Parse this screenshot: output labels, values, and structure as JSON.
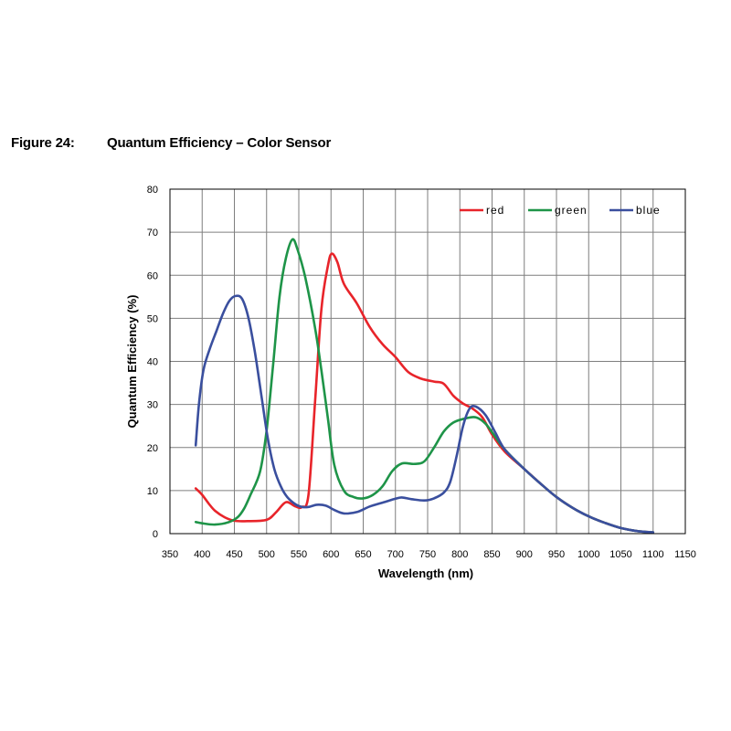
{
  "figure": {
    "label": "Figure 24:",
    "title": "Quantum Efficiency – Color Sensor"
  },
  "chart_data": {
    "type": "line",
    "xlabel": "Wavelength (nm)",
    "ylabel": "Quantum Efficiency (%)",
    "xlim": [
      350,
      1150
    ],
    "ylim": [
      0,
      80
    ],
    "xticks": [
      350,
      400,
      450,
      500,
      550,
      600,
      650,
      700,
      750,
      800,
      850,
      900,
      950,
      1000,
      1050,
      1100,
      1150
    ],
    "yticks": [
      0,
      10,
      20,
      30,
      40,
      50,
      60,
      70,
      80
    ],
    "grid": true,
    "legend_position": "top-right",
    "series": [
      {
        "name": "red",
        "color": "#e8242a",
        "points": [
          [
            390,
            10.5
          ],
          [
            400,
            9
          ],
          [
            410,
            7
          ],
          [
            420,
            5.3
          ],
          [
            435,
            3.8
          ],
          [
            450,
            3
          ],
          [
            470,
            2.9
          ],
          [
            500,
            3.2
          ],
          [
            515,
            5
          ],
          [
            530,
            7.3
          ],
          [
            545,
            6.3
          ],
          [
            555,
            6.2
          ],
          [
            565,
            9
          ],
          [
            575,
            30
          ],
          [
            585,
            52
          ],
          [
            595,
            62
          ],
          [
            601,
            65
          ],
          [
            610,
            63
          ],
          [
            620,
            58
          ],
          [
            640,
            53.5
          ],
          [
            660,
            48
          ],
          [
            680,
            44
          ],
          [
            700,
            41
          ],
          [
            720,
            37.5
          ],
          [
            740,
            36
          ],
          [
            760,
            35.3
          ],
          [
            775,
            34.8
          ],
          [
            790,
            32
          ],
          [
            805,
            30.2
          ],
          [
            820,
            29
          ],
          [
            835,
            27
          ],
          [
            850,
            23
          ],
          [
            870,
            19
          ],
          [
            900,
            15
          ],
          [
            930,
            11
          ],
          [
            950,
            8.5
          ],
          [
            975,
            6
          ],
          [
            1000,
            4
          ],
          [
            1025,
            2.5
          ],
          [
            1050,
            1.3
          ],
          [
            1075,
            0.6
          ],
          [
            1100,
            0.3
          ]
        ]
      },
      {
        "name": "green",
        "color": "#1e9448",
        "points": [
          [
            390,
            2.7
          ],
          [
            400,
            2.4
          ],
          [
            420,
            2.1
          ],
          [
            440,
            2.6
          ],
          [
            455,
            3.8
          ],
          [
            465,
            5.8
          ],
          [
            475,
            9
          ],
          [
            490,
            14.5
          ],
          [
            500,
            24
          ],
          [
            510,
            39
          ],
          [
            520,
            55
          ],
          [
            530,
            64
          ],
          [
            540,
            68.3
          ],
          [
            548,
            66
          ],
          [
            560,
            59.5
          ],
          [
            575,
            48
          ],
          [
            585,
            38
          ],
          [
            595,
            27
          ],
          [
            605,
            16
          ],
          [
            620,
            10
          ],
          [
            635,
            8.5
          ],
          [
            650,
            8.2
          ],
          [
            665,
            9
          ],
          [
            680,
            11
          ],
          [
            695,
            14.5
          ],
          [
            710,
            16.3
          ],
          [
            730,
            16.2
          ],
          [
            745,
            16.8
          ],
          [
            760,
            20
          ],
          [
            775,
            23.7
          ],
          [
            790,
            25.8
          ],
          [
            810,
            26.8
          ],
          [
            825,
            27
          ],
          [
            840,
            25.5
          ],
          [
            855,
            22.5
          ],
          [
            870,
            19.5
          ],
          [
            900,
            15
          ],
          [
            930,
            11
          ],
          [
            950,
            8.5
          ],
          [
            975,
            6
          ],
          [
            1000,
            4
          ],
          [
            1025,
            2.5
          ],
          [
            1050,
            1.3
          ],
          [
            1075,
            0.6
          ],
          [
            1100,
            0.3
          ]
        ]
      },
      {
        "name": "blue",
        "color": "#3a4f9e",
        "points": [
          [
            390,
            20.5
          ],
          [
            395,
            30
          ],
          [
            402,
            38
          ],
          [
            412,
            43
          ],
          [
            422,
            47
          ],
          [
            432,
            51
          ],
          [
            442,
            54
          ],
          [
            452,
            55.2
          ],
          [
            462,
            54.5
          ],
          [
            472,
            50
          ],
          [
            482,
            42
          ],
          [
            492,
            32
          ],
          [
            502,
            22
          ],
          [
            512,
            15
          ],
          [
            522,
            11
          ],
          [
            532,
            8.5
          ],
          [
            545,
            6.8
          ],
          [
            555,
            6.2
          ],
          [
            565,
            6.2
          ],
          [
            578,
            6.7
          ],
          [
            592,
            6.5
          ],
          [
            605,
            5.5
          ],
          [
            620,
            4.7
          ],
          [
            640,
            5
          ],
          [
            660,
            6.3
          ],
          [
            680,
            7.2
          ],
          [
            700,
            8.1
          ],
          [
            710,
            8.4
          ],
          [
            725,
            8
          ],
          [
            745,
            7.7
          ],
          [
            760,
            8.2
          ],
          [
            775,
            9.5
          ],
          [
            785,
            12
          ],
          [
            795,
            18
          ],
          [
            805,
            25
          ],
          [
            815,
            29
          ],
          [
            825,
            29.5
          ],
          [
            840,
            27.5
          ],
          [
            855,
            23.5
          ],
          [
            870,
            19.5
          ],
          [
            900,
            15
          ],
          [
            930,
            11
          ],
          [
            950,
            8.5
          ],
          [
            975,
            6
          ],
          [
            1000,
            4
          ],
          [
            1025,
            2.5
          ],
          [
            1050,
            1.3
          ],
          [
            1075,
            0.6
          ],
          [
            1100,
            0.3
          ]
        ]
      }
    ]
  }
}
